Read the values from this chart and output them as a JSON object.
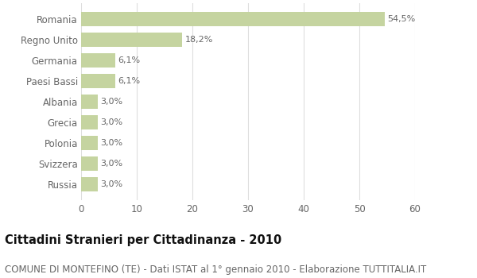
{
  "categories": [
    "Russia",
    "Svizzera",
    "Polonia",
    "Grecia",
    "Albania",
    "Paesi Bassi",
    "Germania",
    "Regno Unito",
    "Romania"
  ],
  "values": [
    3.0,
    3.0,
    3.0,
    3.0,
    3.0,
    6.1,
    6.1,
    18.2,
    54.5
  ],
  "labels": [
    "3,0%",
    "3,0%",
    "3,0%",
    "3,0%",
    "3,0%",
    "6,1%",
    "6,1%",
    "18,2%",
    "54,5%"
  ],
  "bar_color": "#c5d4a0",
  "background_color": "#ffffff",
  "grid_color": "#dddddd",
  "text_color": "#666666",
  "title": "Cittadini Stranieri per Cittadinanza - 2010",
  "subtitle": "COMUNE DI MONTEFINO (TE) - Dati ISTAT al 1° gennaio 2010 - Elaborazione TUTTITALIA.IT",
  "xlim": [
    0,
    60
  ],
  "xticks": [
    0,
    10,
    20,
    30,
    40,
    50,
    60
  ],
  "title_fontsize": 10.5,
  "subtitle_fontsize": 8.5,
  "label_fontsize": 8,
  "tick_fontsize": 8.5,
  "bar_height": 0.7
}
